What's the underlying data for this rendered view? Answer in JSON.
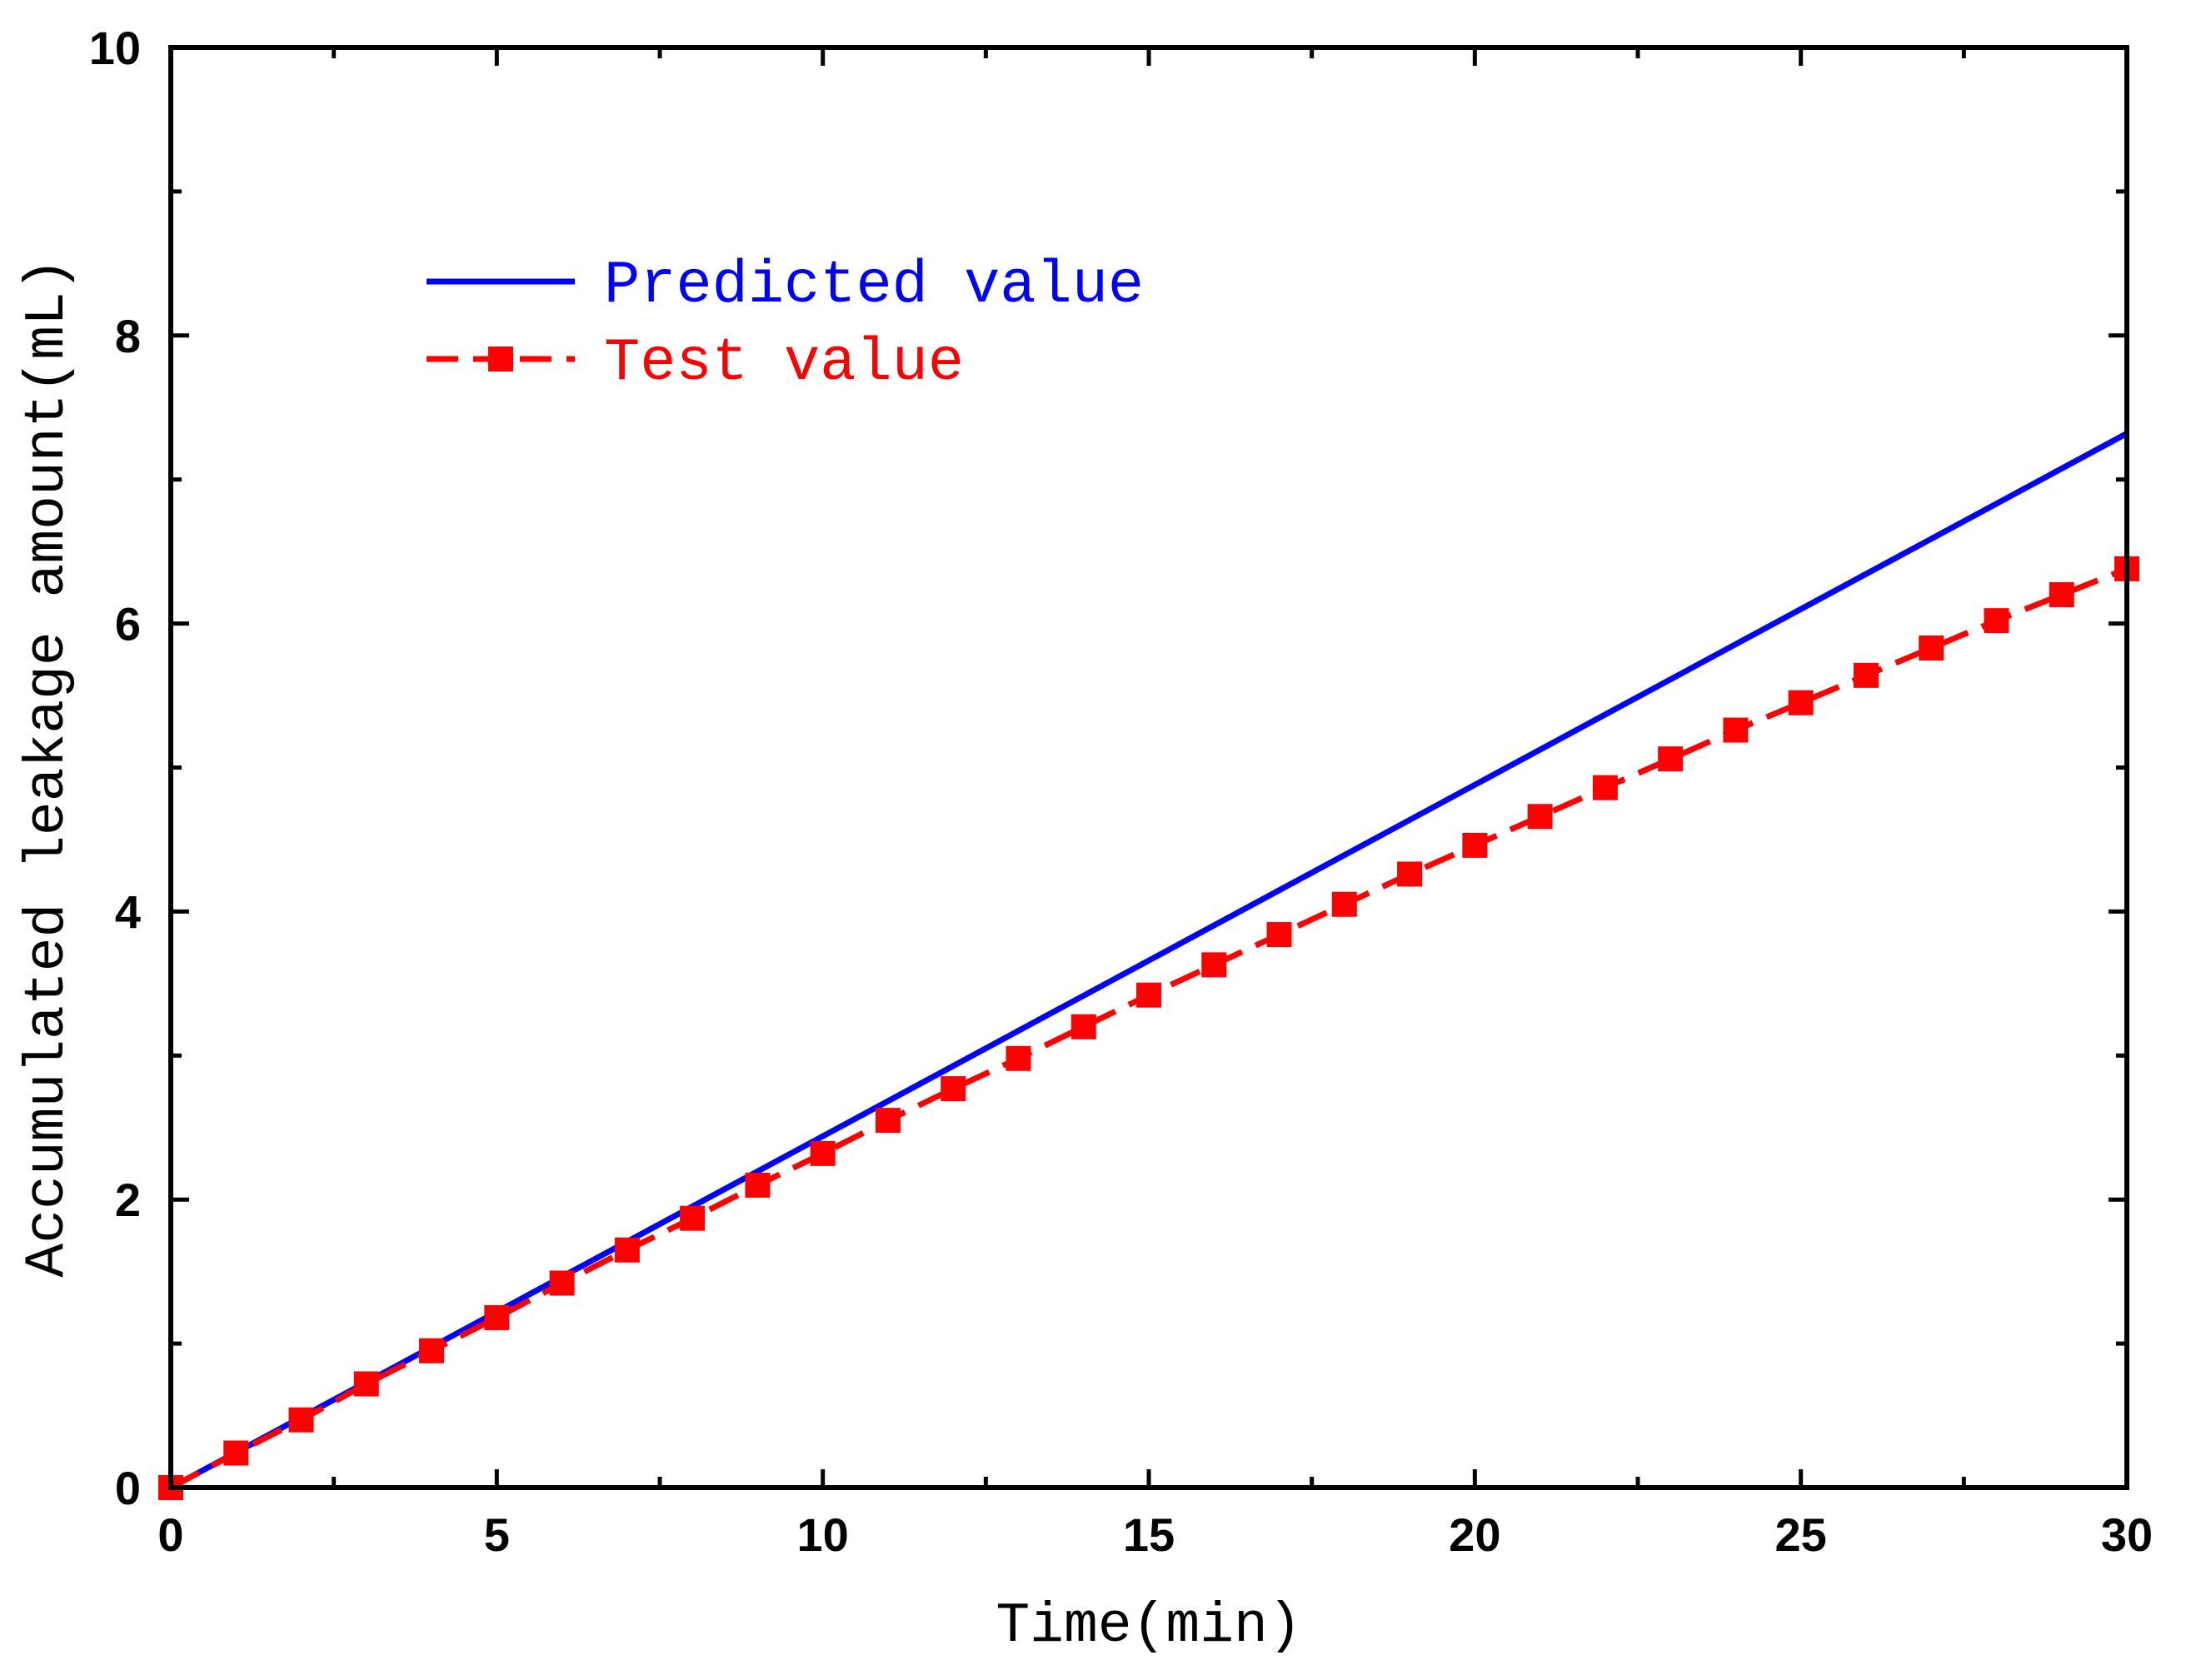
{
  "chart_data": {
    "type": "line",
    "title": "",
    "xlabel": "Time(min)",
    "ylabel": "Accumulated leakage amount(mL)",
    "xlim": [
      0,
      30
    ],
    "ylim": [
      0,
      10
    ],
    "xticks": [
      0,
      5,
      10,
      15,
      20,
      25,
      30
    ],
    "xtick_labels": [
      "0",
      "5",
      "10",
      "15",
      "20",
      "25",
      "30"
    ],
    "yticks": [
      0,
      2,
      4,
      6,
      8,
      10
    ],
    "ytick_labels": [
      "0",
      "2",
      "4",
      "6",
      "8",
      "10"
    ],
    "x_minor_step": 2.5,
    "y_minor_step": 1,
    "grid": false,
    "legend_position": "top-left",
    "series": [
      {
        "name": "Predicted value",
        "color": "#0000ff",
        "style": "solid",
        "marker": "none",
        "x": [
          0,
          30
        ],
        "y": [
          0,
          7.32
        ]
      },
      {
        "name": "Test value",
        "color": "#ff0000",
        "style": "dashed",
        "marker": "square",
        "x": [
          0,
          1,
          2,
          3,
          4,
          5,
          6,
          7,
          8,
          9,
          10,
          11,
          12,
          13,
          14,
          15,
          16,
          17,
          18,
          19,
          20,
          21,
          22,
          23,
          24,
          25,
          26,
          27,
          28,
          29,
          30
        ],
        "y": [
          0,
          0.24,
          0.47,
          0.72,
          0.95,
          1.18,
          1.42,
          1.65,
          1.87,
          2.1,
          2.32,
          2.55,
          2.77,
          2.98,
          3.2,
          3.42,
          3.63,
          3.84,
          4.05,
          4.26,
          4.46,
          4.66,
          4.86,
          5.06,
          5.26,
          5.45,
          5.64,
          5.83,
          6.02,
          6.2,
          6.38
        ]
      }
    ]
  }
}
